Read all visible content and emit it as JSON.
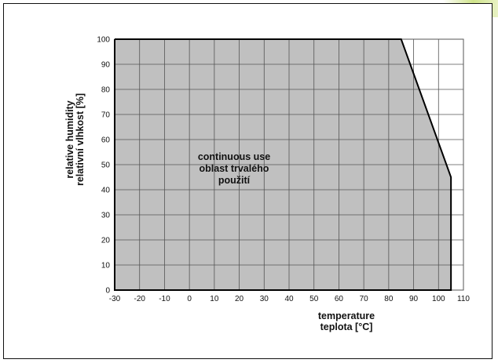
{
  "chart_data": {
    "type": "area",
    "xlabel": [
      "temperature",
      "teplota [°C]"
    ],
    "ylabel": [
      "relative humidity",
      "relativní vlhkost [%]"
    ],
    "annotation": [
      "continuous use",
      "oblast trvalého",
      "použití"
    ],
    "xlim": [
      -30,
      110
    ],
    "ylim": [
      0,
      100
    ],
    "xticks": [
      -30,
      -20,
      -10,
      0,
      10,
      20,
      30,
      40,
      50,
      60,
      70,
      80,
      90,
      100,
      110
    ],
    "yticks": [
      0,
      10,
      20,
      30,
      40,
      50,
      60,
      70,
      80,
      90,
      100
    ],
    "grid": true,
    "series": [
      {
        "x": [
          -30,
          85,
          105,
          105
        ],
        "y": [
          100,
          100,
          45,
          0
        ]
      }
    ],
    "colors": {
      "fill": "#c0c0c0",
      "grid": "#555555",
      "boundary": "#000000"
    }
  }
}
